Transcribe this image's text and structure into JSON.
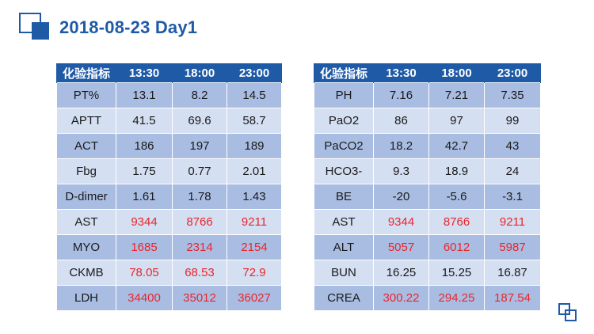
{
  "title": "2018-08-23 Day1",
  "colors": {
    "accent": "#1f5aa6",
    "row_dark": "#a9bde3",
    "row_light": "#d4dff2",
    "abnormal": "#e8262d"
  },
  "icons": {
    "logo": "overlapping-squares-icon",
    "corner": "overlapping-squares-icon"
  },
  "table_left": {
    "headers": [
      "化验指标",
      "13:30",
      "18:00",
      "23:00"
    ],
    "rows": [
      {
        "name": "PT%",
        "values": [
          "13.1",
          "8.2",
          "14.5"
        ],
        "abnormal": false
      },
      {
        "name": "APTT",
        "values": [
          "41.5",
          "69.6",
          "58.7"
        ],
        "abnormal": false
      },
      {
        "name": "ACT",
        "values": [
          "186",
          "197",
          "189"
        ],
        "abnormal": false
      },
      {
        "name": "Fbg",
        "values": [
          "1.75",
          "0.77",
          "2.01"
        ],
        "abnormal": false
      },
      {
        "name": "D-dimer",
        "values": [
          "1.61",
          "1.78",
          "1.43"
        ],
        "abnormal": false
      },
      {
        "name": "AST",
        "values": [
          "9344",
          "8766",
          "9211"
        ],
        "abnormal": true
      },
      {
        "name": "MYO",
        "values": [
          "1685",
          "2314",
          "2154"
        ],
        "abnormal": true
      },
      {
        "name": "CKMB",
        "values": [
          "78.05",
          "68.53",
          "72.9"
        ],
        "abnormal": true
      },
      {
        "name": "LDH",
        "values": [
          "34400",
          "35012",
          "36027"
        ],
        "abnormal": true
      }
    ]
  },
  "table_right": {
    "headers": [
      "化验指标",
      "13:30",
      "18:00",
      "23:00"
    ],
    "rows": [
      {
        "name": "PH",
        "values": [
          "7.16",
          "7.21",
          "7.35"
        ],
        "abnormal": false
      },
      {
        "name": "PaO2",
        "values": [
          "86",
          "97",
          "99"
        ],
        "abnormal": false
      },
      {
        "name": "PaCO2",
        "values": [
          "18.2",
          "42.7",
          "43"
        ],
        "abnormal": false
      },
      {
        "name": "HCO3-",
        "values": [
          "9.3",
          "18.9",
          "24"
        ],
        "abnormal": false
      },
      {
        "name": "BE",
        "values": [
          "-20",
          "-5.6",
          "-3.1"
        ],
        "abnormal": false
      },
      {
        "name": "AST",
        "values": [
          "9344",
          "8766",
          "9211"
        ],
        "abnormal": true
      },
      {
        "name": "ALT",
        "values": [
          "5057",
          "6012",
          "5987"
        ],
        "abnormal": true
      },
      {
        "name": "BUN",
        "values": [
          "16.25",
          "15.25",
          "16.87"
        ],
        "abnormal": false
      },
      {
        "name": "CREA",
        "values": [
          "300.22",
          "294.25",
          "187.54"
        ],
        "abnormal": true
      }
    ]
  }
}
